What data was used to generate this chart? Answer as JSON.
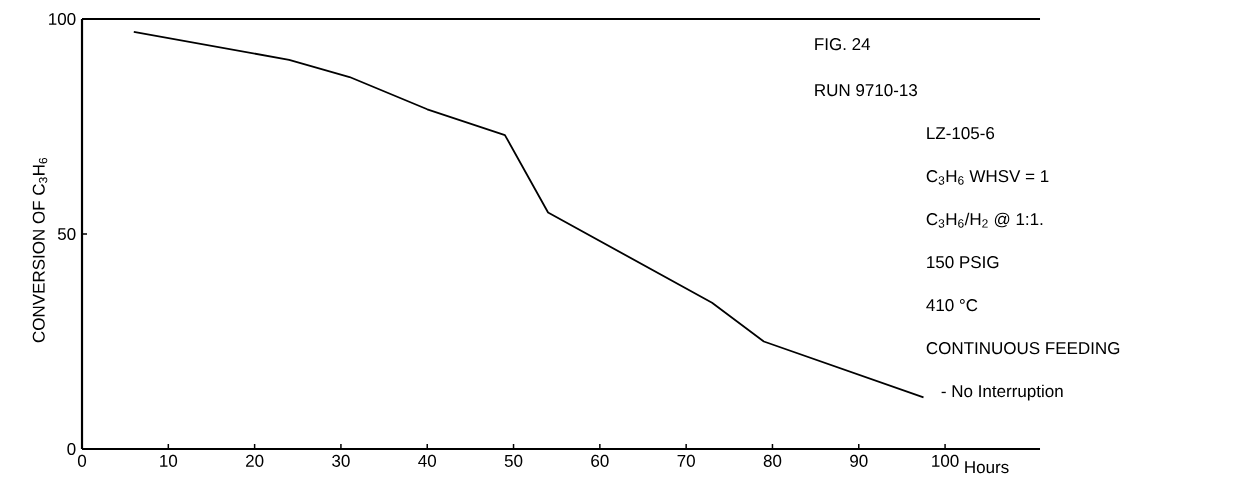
{
  "chart_data": {
    "type": "line",
    "title": "FIG. 24",
    "xlabel": "Hours",
    "ylabel": "CONVERSION OF C$_{3}$H$_{6}$",
    "x": [
      6,
      24,
      31,
      40,
      49,
      54,
      73,
      79,
      97.5
    ],
    "values": [
      97,
      90.5,
      86.5,
      79,
      73,
      55,
      34,
      25,
      12
    ],
    "color": "#000000",
    "marker": "none",
    "line_style": "solid",
    "grid": false,
    "xlim": [
      0,
      111
    ],
    "ylim": [
      0,
      100
    ],
    "xticks": [
      0,
      10,
      20,
      30,
      40,
      50,
      60,
      70,
      80,
      90,
      100
    ],
    "yticks": [
      0,
      50,
      100
    ],
    "annotations": [
      "RUN 9710-13",
      "LZ-105-6",
      "C$_{3}$H$_{6}$ WHSV = 1",
      "C$_{3}$H$_{6}$/H$_{2}$ @ 1:1.",
      "150 PSIG",
      "410 °C",
      "CONTINUOUS FEEDING",
      "- No Interruption"
    ]
  }
}
